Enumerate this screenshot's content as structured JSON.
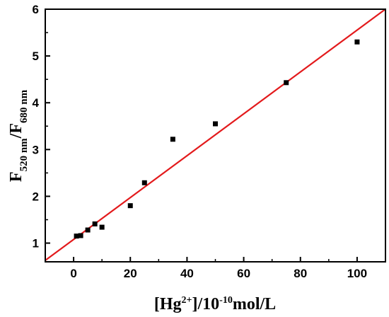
{
  "chart_data": {
    "type": "scatter",
    "xlabel": {
      "base": "[Hg",
      "sup1": "2+",
      "mid": "]/10",
      "sup2": "-10",
      "tail": "mol/L"
    },
    "ylabel": {
      "f1": "F",
      "sub1": "520 nm",
      "slash": "/F",
      "sub2": "680 nm"
    },
    "xlim": [
      -10,
      110
    ],
    "ylim": [
      0.6,
      6
    ],
    "x_ticks": [
      0,
      20,
      40,
      60,
      80,
      100
    ],
    "y_ticks": [
      1,
      2,
      3,
      4,
      5,
      6
    ],
    "grid": false,
    "series": [
      {
        "type": "scatter",
        "color": "#000000",
        "marker": "square",
        "points": [
          {
            "x": 1,
            "y": 1.15
          },
          {
            "x": 2.5,
            "y": 1.16
          },
          {
            "x": 5,
            "y": 1.28
          },
          {
            "x": 7.5,
            "y": 1.41
          },
          {
            "x": 10,
            "y": 1.34
          },
          {
            "x": 20,
            "y": 1.8
          },
          {
            "x": 25,
            "y": 2.29
          },
          {
            "x": 35,
            "y": 3.22
          },
          {
            "x": 50,
            "y": 3.55
          },
          {
            "x": 75,
            "y": 4.43
          },
          {
            "x": 100,
            "y": 5.3
          }
        ]
      },
      {
        "type": "line",
        "color": "#e31a1c",
        "fit": {
          "slope": 0.04476,
          "intercept": 1.078
        },
        "x_range": [
          -10,
          110
        ]
      }
    ]
  }
}
